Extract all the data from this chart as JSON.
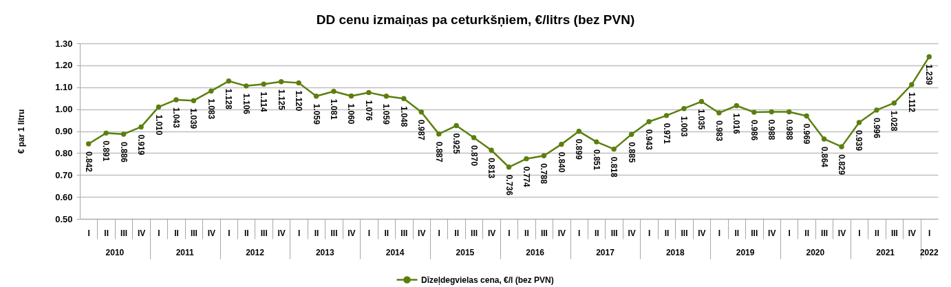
{
  "chart_data": {
    "type": "line",
    "title": "DD cenu izmaiņas pa ceturkšņiem, €/litrs (bez PVN)",
    "ylabel": "€ par 1 litru",
    "categories": [
      "I",
      "II",
      "III",
      "IV",
      "I",
      "II",
      "III",
      "IV",
      "I",
      "II",
      "III",
      "IV",
      "I",
      "II",
      "III",
      "IV",
      "I",
      "II",
      "III",
      "IV",
      "I",
      "II",
      "III",
      "IV",
      "I",
      "II",
      "III",
      "IV",
      "I",
      "II",
      "III",
      "IV",
      "I",
      "II",
      "III",
      "IV",
      "I",
      "II",
      "III",
      "IV",
      "I",
      "II",
      "III",
      "IV",
      "I",
      "II",
      "III",
      "IV",
      "I"
    ],
    "series": [
      {
        "name": "Dīzeļdegvielas cena, €/l (bez PVN)",
        "color": "#5b7f0e",
        "values": [
          0.842,
          0.891,
          0.886,
          0.919,
          1.01,
          1.043,
          1.039,
          1.083,
          1.128,
          1.106,
          1.114,
          1.125,
          1.12,
          1.059,
          1.081,
          1.06,
          1.076,
          1.059,
          1.048,
          0.987,
          0.887,
          0.925,
          0.87,
          0.813,
          0.736,
          0.774,
          0.788,
          0.84,
          0.899,
          0.851,
          0.818,
          0.885,
          0.943,
          0.971,
          1.003,
          1.035,
          0.983,
          1.016,
          0.986,
          0.988,
          0.988,
          0.969,
          0.864,
          0.829,
          0.939,
          0.996,
          1.028,
          1.112,
          1.239
        ],
        "value_labels": [
          "0.842",
          "0.891",
          "0.886",
          "0.919",
          "1.010",
          "1.043",
          "1.039",
          "1.083",
          "1.128",
          "1.106",
          "1.114",
          "1.125",
          "1.120",
          "1.059",
          "1.081",
          "1.060",
          "1.076",
          "1.059",
          "1.048",
          "0.987",
          "0.887",
          "0.925",
          "0.870",
          "0.813",
          "0.736",
          "0.774",
          "0.788",
          "0.840",
          "0.899",
          "0.851",
          "0.818",
          "0.885",
          "0.943",
          "0.971",
          "1.003",
          "1.035",
          "0.983",
          "1.016",
          "0.986",
          "0.988",
          "0.988",
          "0.969",
          "0.864",
          "0.829",
          "0.939",
          "0.996",
          "1.028",
          "1.112",
          "1.239"
        ]
      }
    ],
    "ylim": [
      0.5,
      1.3
    ],
    "yticks": [
      {
        "value": 0.5,
        "label": "0.50"
      },
      {
        "value": 0.6,
        "label": "0.60"
      },
      {
        "value": 0.7,
        "label": "0.70"
      },
      {
        "value": 0.8,
        "label": "0.80"
      },
      {
        "value": 0.9,
        "label": "0.90"
      },
      {
        "value": 1.0,
        "label": "1.00"
      },
      {
        "value": 1.1,
        "label": "1.10"
      },
      {
        "value": 1.2,
        "label": "1.20"
      },
      {
        "value": 1.3,
        "label": "1.30"
      }
    ],
    "grid": "y",
    "legend": "bottom",
    "marker": "circle",
    "line_style": "solid",
    "annotations": [
      "2010",
      "2011",
      "2012",
      "2013",
      "2014",
      "2015",
      "2016",
      "2017",
      "2018",
      "2019",
      "2020",
      "2021",
      "2022"
    ]
  }
}
